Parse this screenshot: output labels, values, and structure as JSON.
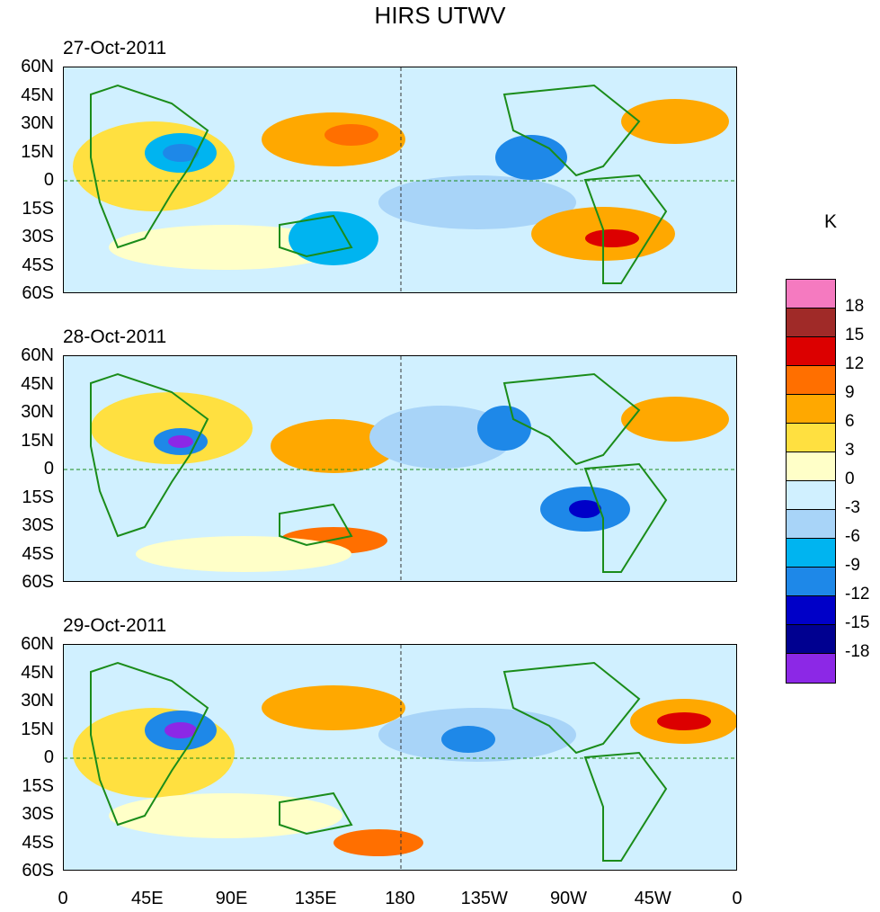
{
  "title": "HIRS UTWV",
  "panels": [
    {
      "date": "27-Oct-2011"
    },
    {
      "date": "28-Oct-2011"
    },
    {
      "date": "29-Oct-2011"
    }
  ],
  "y_ticks": [
    "60N",
    "45N",
    "30N",
    "15N",
    "0",
    "15S",
    "30S",
    "45S",
    "60S"
  ],
  "x_ticks": [
    "0",
    "45E",
    "90E",
    "135E",
    "180",
    "135W",
    "90W",
    "45W",
    "0"
  ],
  "colorbar": {
    "unit": "K",
    "labels": [
      "18",
      "15",
      "12",
      "9",
      "6",
      "3",
      "0",
      "-3",
      "-6",
      "-9",
      "-12",
      "-15",
      "-18"
    ],
    "colors": [
      "#f57ac0",
      "#a02a28",
      "#dc0000",
      "#ff6f00",
      "#ffa800",
      "#ffe040",
      "#ffffc8",
      "#d0f0ff",
      "#a8d4f8",
      "#00b4f0",
      "#1e88e8",
      "#0000c8",
      "#000090",
      "#8c28e6"
    ]
  }
}
